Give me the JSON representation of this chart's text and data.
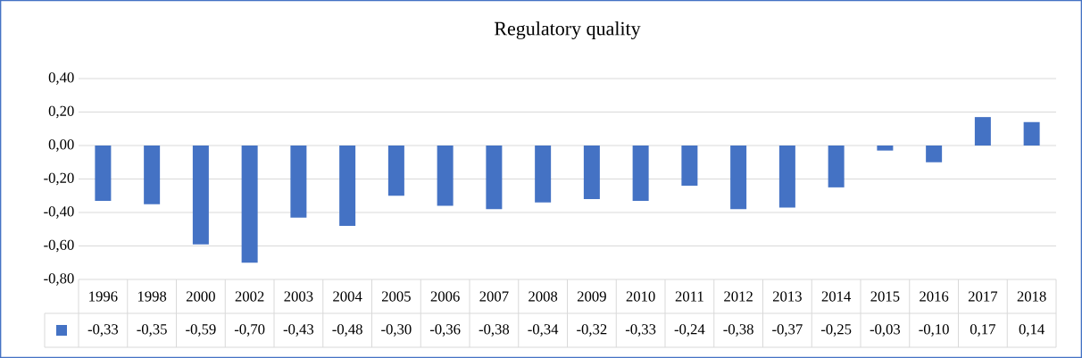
{
  "chart_data": {
    "type": "bar",
    "title": "Regulatory quality",
    "categories": [
      "1996",
      "1998",
      "2000",
      "2002",
      "2003",
      "2004",
      "2005",
      "2006",
      "2007",
      "2008",
      "2009",
      "2010",
      "2011",
      "2012",
      "2013",
      "2014",
      "2015",
      "2016",
      "2017",
      "2018"
    ],
    "values": [
      -0.33,
      -0.35,
      -0.59,
      -0.7,
      -0.43,
      -0.48,
      -0.3,
      -0.36,
      -0.38,
      -0.34,
      -0.32,
      -0.33,
      -0.24,
      -0.38,
      -0.37,
      -0.25,
      -0.03,
      -0.1,
      0.17,
      0.14
    ],
    "value_labels": [
      "-0,33",
      "-0,35",
      "-0,59",
      "-0,70",
      "-0,43",
      "-0,48",
      "-0,30",
      "-0,36",
      "-0,38",
      "-0,34",
      "-0,32",
      "-0,33",
      "-0,24",
      "-0,38",
      "-0,37",
      "-0,25",
      "-0,03",
      "-0,10",
      "0,17",
      "0,14"
    ],
    "color": "#4472c4",
    "ylim": [
      -0.8,
      0.4
    ],
    "yticks": [
      {
        "value": -0.8,
        "label": "-0,80"
      },
      {
        "value": -0.6,
        "label": "-0,60"
      },
      {
        "value": -0.4,
        "label": "-0,40"
      },
      {
        "value": -0.2,
        "label": "-0,20"
      },
      {
        "value": 0,
        "label": "0,00"
      },
      {
        "value": 0.2,
        "label": "0,20"
      },
      {
        "value": 0.4,
        "label": "0,40"
      }
    ],
    "grid": "y"
  }
}
